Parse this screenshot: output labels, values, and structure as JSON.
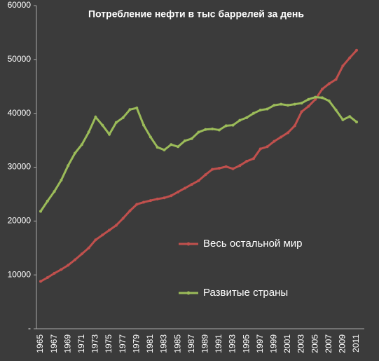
{
  "chart_data": {
    "type": "line",
    "title": "Потребление нефти в тыс баррелей за день",
    "categories": [
      "1965",
      null,
      "1967",
      null,
      "1969",
      null,
      "1971",
      null,
      "1973",
      null,
      "1975",
      null,
      "1977",
      null,
      "1979",
      null,
      "1981",
      null,
      "1983",
      null,
      "1985",
      null,
      "1987",
      null,
      "1989",
      null,
      "1991",
      null,
      "1993",
      null,
      "1995",
      null,
      "1997",
      null,
      "1999",
      null,
      "2001",
      null,
      "2003",
      null,
      "2005",
      null,
      "2007",
      null,
      "2009",
      null,
      "2011"
    ],
    "series": [
      {
        "name": "Весь остальной мир",
        "color": "#c0504d",
        "values": [
          8800,
          9500,
          10300,
          11000,
          11800,
          12800,
          13900,
          15000,
          16500,
          17400,
          18300,
          19200,
          20500,
          21900,
          23100,
          23500,
          23800,
          24100,
          24300,
          24700,
          25400,
          26100,
          26800,
          27500,
          28600,
          29600,
          29800,
          30100,
          29700,
          30300,
          31100,
          31600,
          33400,
          33800,
          34800,
          35600,
          36400,
          37700,
          40300,
          41300,
          42600,
          44500,
          45500,
          46300,
          48800,
          50300,
          51700
        ]
      },
      {
        "name": "Развитые страны",
        "color": "#9bbb59",
        "values": [
          21800,
          23700,
          25500,
          27600,
          30300,
          32600,
          34200,
          36500,
          39300,
          37800,
          36100,
          38300,
          39200,
          40700,
          41000,
          37800,
          35600,
          33700,
          33200,
          34200,
          33800,
          34900,
          35300,
          36500,
          37000,
          37100,
          36900,
          37700,
          37800,
          38700,
          39200,
          40000,
          40600,
          40800,
          41500,
          41700,
          41500,
          41700,
          41900,
          42600,
          43000,
          42900,
          42300,
          40600,
          38800,
          39400,
          38400
        ]
      }
    ],
    "ylim": [
      0,
      60000
    ],
    "yticks": [
      {
        "value": 0,
        "label": "-"
      },
      10000,
      20000,
      30000,
      40000,
      50000,
      60000
    ]
  }
}
